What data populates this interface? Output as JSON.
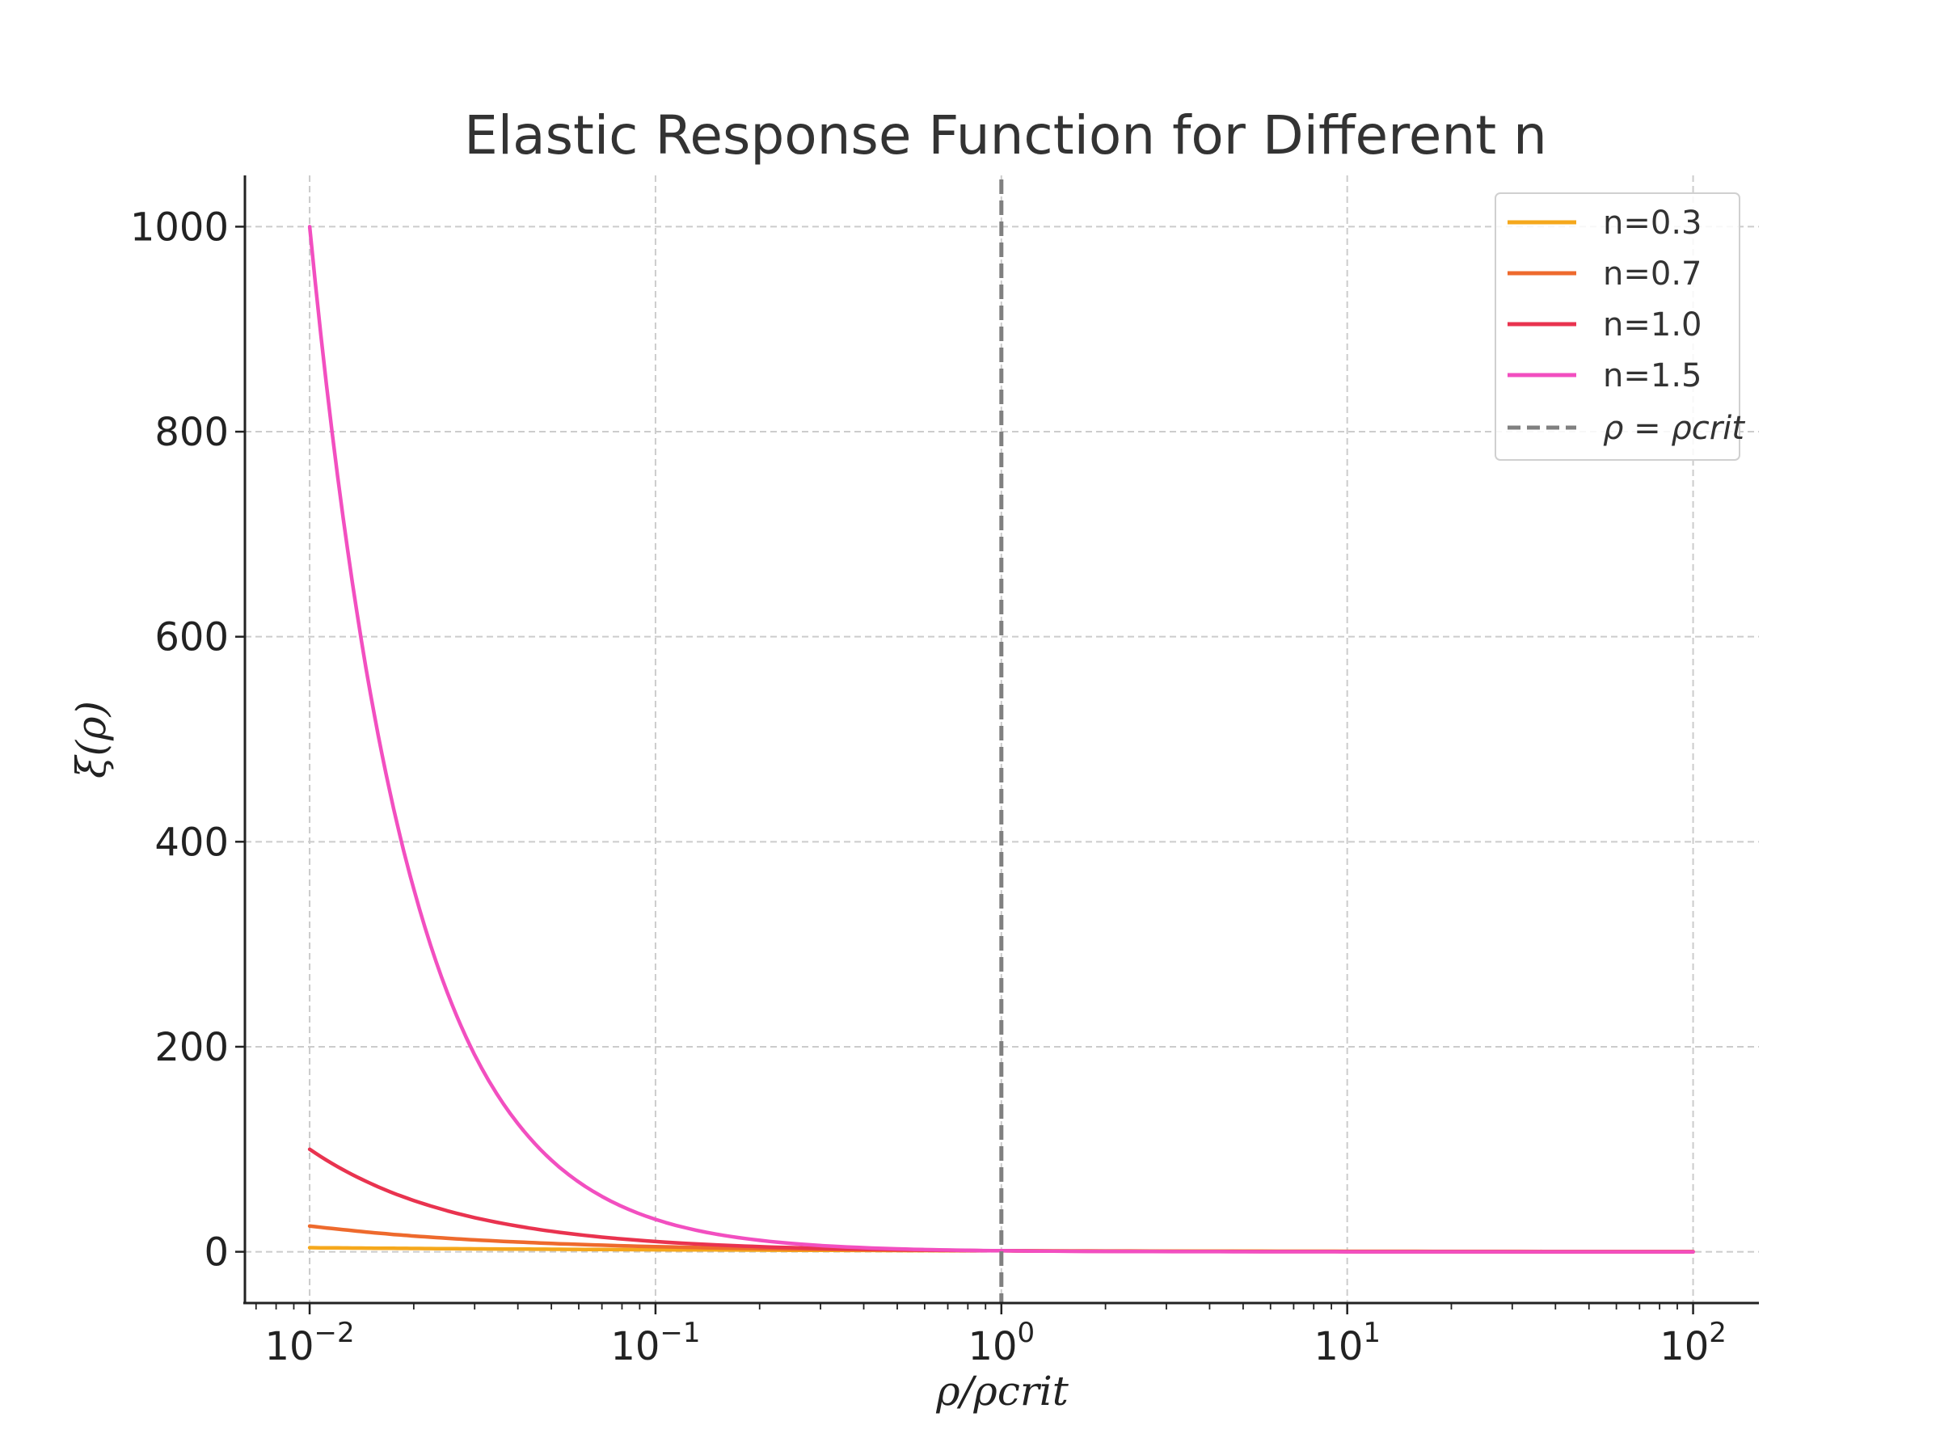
{
  "chart_data": {
    "type": "line",
    "title": "Elastic Response Function for Different n",
    "xlabel": "ρ/ρcrit",
    "ylabel": "ξ(ρ)",
    "x_scale": "log",
    "xlim": [
      0.0065,
      155
    ],
    "ylim": [
      -50,
      1050
    ],
    "x_ticks": [
      {
        "value": 0.01,
        "base": "10",
        "exp": "−2"
      },
      {
        "value": 0.1,
        "base": "10",
        "exp": "−1"
      },
      {
        "value": 1,
        "base": "10",
        "exp": "0"
      },
      {
        "value": 10,
        "base": "10",
        "exp": "1"
      },
      {
        "value": 100,
        "base": "10",
        "exp": "2"
      }
    ],
    "y_ticks": [
      "0",
      "200",
      "400",
      "600",
      "800",
      "1000"
    ],
    "grid": true,
    "legend_position": "top-right",
    "x": [
      0.01,
      0.0125,
      0.015,
      0.0175,
      0.02,
      0.025,
      0.03,
      0.04,
      0.05,
      0.07,
      0.1,
      0.15,
      0.2,
      0.3,
      0.5,
      0.7,
      1,
      2,
      5,
      10,
      20,
      50,
      100
    ],
    "series": [
      {
        "name": "n=0.3",
        "color": "#f5a81c",
        "values": [
          3.98,
          3.73,
          3.52,
          3.36,
          3.24,
          3.02,
          2.87,
          2.63,
          2.46,
          2.22,
          2.0,
          1.77,
          1.62,
          1.44,
          1.23,
          1.11,
          1.0,
          0.81,
          0.62,
          0.5,
          0.41,
          0.31,
          0.25
        ]
      },
      {
        "name": "n=0.7",
        "color": "#ee6a2d",
        "values": [
          25.1,
          21.6,
          18.9,
          16.9,
          15.4,
          13.2,
          11.6,
          9.53,
          8.14,
          6.43,
          5.01,
          3.77,
          3.09,
          2.32,
          1.62,
          1.28,
          1.0,
          0.62,
          0.32,
          0.2,
          0.12,
          0.06,
          0.04
        ]
      },
      {
        "name": "n=1.0",
        "color": "#e9334f",
        "values": [
          100,
          80,
          66.7,
          57.1,
          50,
          40,
          33.3,
          25,
          20,
          14.3,
          10,
          6.67,
          5,
          3.33,
          2,
          1.43,
          1,
          0.5,
          0.2,
          0.1,
          0.05,
          0.02,
          0.01
        ]
      },
      {
        "name": "n=1.5",
        "color": "#f24fc0",
        "values": [
          1000,
          716,
          544,
          432,
          354,
          253,
          192,
          125,
          89.4,
          54,
          31.6,
          17.2,
          11.2,
          6.09,
          2.83,
          1.71,
          1,
          0.35,
          0.09,
          0.03,
          0.01,
          0.003,
          0.001
        ]
      }
    ],
    "reference_line": {
      "name": "ρ = ρcrit",
      "x": 1,
      "color": "#808080",
      "style": "dashed"
    }
  }
}
